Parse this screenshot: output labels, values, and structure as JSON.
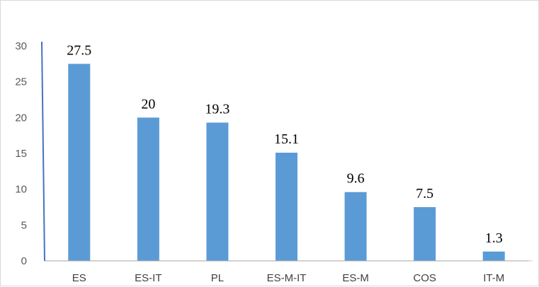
{
  "chart_data": {
    "type": "bar",
    "title": "",
    "xlabel": "",
    "ylabel": "",
    "categories": [
      "ES",
      "ES-IT",
      "PL",
      "ES-M-IT",
      "ES-M",
      "COS",
      "IT-M"
    ],
    "values": [
      27.5,
      20,
      19.3,
      15.1,
      9.6,
      7.5,
      1.3
    ],
    "data_labels": [
      "27.5",
      "20",
      "19.3",
      "15.1",
      "9.6",
      "7.5",
      "1.3"
    ],
    "ylim": [
      0,
      30
    ],
    "yticks": [
      0,
      5,
      10,
      15,
      20,
      25,
      30
    ],
    "ytick_labels": [
      "0",
      "5",
      "10",
      "15",
      "20",
      "25",
      "30"
    ],
    "grid": false,
    "legend": "none",
    "colors": {
      "bar": "#5b9bd5",
      "axis": "#4472c4",
      "baseline": "#a6a6a6",
      "border": "#d9d9d9"
    }
  }
}
